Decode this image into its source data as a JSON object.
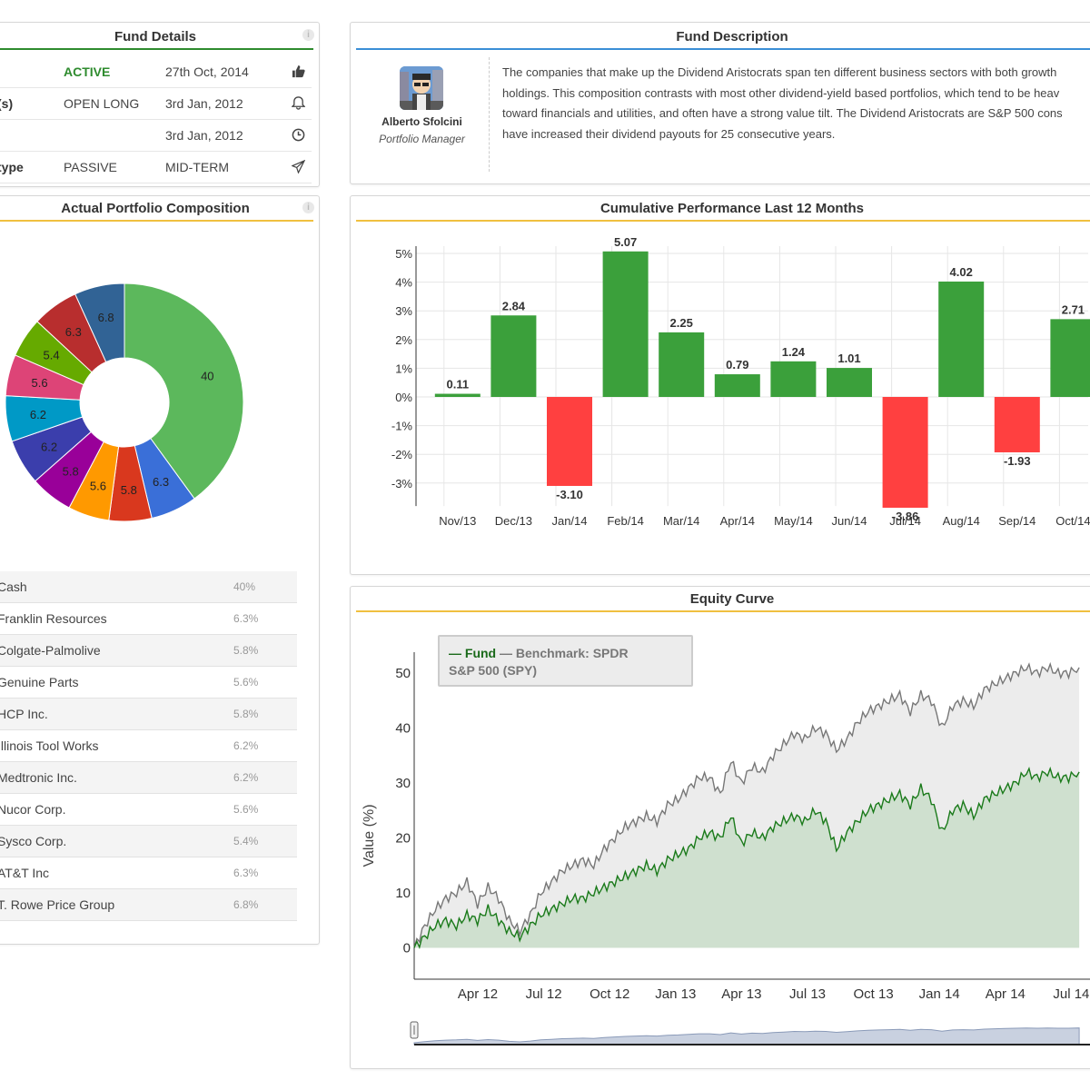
{
  "fund_details": {
    "title": "Fund Details",
    "rows": [
      {
        "label": "",
        "value": "ACTIVE",
        "date": "27th Oct, 2014",
        "icon": "thumbs-up-icon"
      },
      {
        "label": "(s)",
        "value": "OPEN LONG",
        "date": "3rd Jan, 2012",
        "icon": "bell-icon"
      },
      {
        "label": "",
        "value": "",
        "date": "3rd Jan, 2012",
        "icon": "clock-icon"
      },
      {
        "label": "type",
        "value": "PASSIVE",
        "date": "MID-TERM",
        "icon": "paper-plane-icon"
      }
    ],
    "accent": "#2e8b2e"
  },
  "fund_description": {
    "title": "Fund Description",
    "manager_name": "Alberto Sfolcini",
    "manager_role": "Portfolio Manager",
    "lines": [
      "The companies that make up the Dividend Aristocrats span ten different business sectors with both growth",
      "holdings. This composition contrasts with most other dividend-yield based portfolios, which tend to be heav",
      "toward financials and utilities, and often have a strong value tilt. The Dividend Aristocrats are S&P 500 cons",
      "have increased their dividend payouts for 25 consecutive years."
    ]
  },
  "composition": {
    "title": "Actual Portfolio Composition",
    "legend": [
      {
        "name": "Cash",
        "pct": "40%"
      },
      {
        "name": "Franklin Resources",
        "pct": "6.3%"
      },
      {
        "name": "Colgate-Palmolive",
        "pct": "5.8%"
      },
      {
        "name": "Genuine Parts",
        "pct": "5.6%"
      },
      {
        "name": "HCP Inc.",
        "pct": "5.8%"
      },
      {
        "name": "Illinois Tool Works",
        "pct": "6.2%"
      },
      {
        "name": "Medtronic Inc.",
        "pct": "6.2%"
      },
      {
        "name": "Nucor Corp.",
        "pct": "5.6%"
      },
      {
        "name": "Sysco Corp.",
        "pct": "5.4%"
      },
      {
        "name": "AT&T Inc",
        "pct": "6.3%"
      },
      {
        "name": "T. Rowe Price Group",
        "pct": "6.8%"
      }
    ]
  },
  "performance": {
    "title": "Cumulative Performance Last 12 Months"
  },
  "equity": {
    "title": "Equity Curve",
    "legend_fund": "— Fund",
    "legend_bench": "— Benchmark: SPDR",
    "legend_bench2": "S&P 500 (SPY)"
  },
  "chart_data": [
    {
      "type": "pie",
      "style": "donut",
      "labels": [
        "Cash",
        "Franklin Resources",
        "Colgate-Palmolive",
        "Genuine Parts",
        "HCP Inc.",
        "Illinois Tool Works",
        "Medtronic Inc.",
        "Nucor Corp.",
        "Sysco Corp.",
        "AT&T Inc",
        "T. Rowe Price Group"
      ],
      "values": [
        40,
        6.3,
        5.8,
        5.6,
        5.8,
        6.2,
        6.2,
        5.6,
        5.4,
        6.3,
        6.8
      ],
      "colors": [
        "#5cb85c",
        "#3a6fd8",
        "#d9381e",
        "#ff9900",
        "#990099",
        "#3b3eac",
        "#0099c6",
        "#dd4477",
        "#66aa00",
        "#b82e2e",
        "#316395"
      ]
    },
    {
      "type": "bar",
      "title": "Cumulative Performance Last 12 Months",
      "categories": [
        "Nov/13",
        "Dec/13",
        "Jan/14",
        "Feb/14",
        "Mar/14",
        "Apr/14",
        "May/14",
        "Jun/14",
        "Jul/14",
        "Aug/14",
        "Sep/14",
        "Oct/14"
      ],
      "values": [
        0.11,
        2.84,
        -3.1,
        5.07,
        2.25,
        0.79,
        1.24,
        1.01,
        -3.86,
        4.02,
        -1.93,
        2.71
      ],
      "labels": [
        "0.11",
        "2.84",
        "-3.10",
        "5.07",
        "2.25",
        "0.79",
        "1.24",
        "1.01",
        "-3.86",
        "4.02",
        "-1.93",
        "2.71"
      ],
      "yticks": [
        "5%",
        "4%",
        "3%",
        "2%",
        "1%",
        "0%",
        "-1%",
        "-2%",
        "-3%"
      ],
      "ylim": [
        -3.8,
        5
      ],
      "positive_color": "#3ba03b",
      "negative_color": "#ff4040",
      "grid": true
    },
    {
      "type": "area",
      "title": "Equity Curve",
      "ylabel": "Value (%)",
      "yticks": [
        "0",
        "10",
        "20",
        "30",
        "40",
        "50"
      ],
      "ylim": [
        -2,
        58
      ],
      "xticks": [
        "Apr 12",
        "Jul 12",
        "Oct 12",
        "Jan 13",
        "Apr 13",
        "Jul 13",
        "Oct 13",
        "Jan 14",
        "Apr 14",
        "Jul 14"
      ],
      "series": [
        {
          "name": "Fund",
          "color": "#1a7a1a",
          "fill": "#cfe0cf",
          "x": [
            0,
            0.5,
            1,
            1.5,
            2,
            2.5,
            3,
            3.5,
            4,
            4.5,
            5,
            5.5,
            6,
            6.5,
            7,
            7.5,
            8,
            8.5,
            9,
            9.5,
            10,
            10.5,
            11,
            11.5,
            12,
            12.5,
            13,
            13.5,
            14,
            14.5,
            15,
            15.5,
            16,
            16.5,
            17,
            17.5,
            18,
            18.5,
            19,
            19.5,
            20,
            20.5,
            21,
            21.5,
            22,
            22.5,
            23,
            23.5,
            24,
            24.5,
            25,
            25.5,
            26,
            26.5,
            27,
            27.5,
            28,
            28.5,
            29,
            29.5,
            30,
            30.5,
            31,
            31.5
          ],
          "y": [
            0,
            2,
            4,
            5,
            4,
            6,
            5,
            7,
            5,
            3,
            2,
            4,
            6,
            7,
            8,
            9,
            9,
            10,
            11,
            12,
            13,
            14,
            15,
            14,
            16,
            17,
            18,
            20,
            21,
            20,
            24,
            19,
            21,
            20,
            22,
            23,
            24,
            23,
            25,
            23,
            18,
            21,
            23,
            25,
            26,
            27,
            28,
            26,
            29,
            27,
            21,
            25,
            26,
            24,
            27,
            28,
            29,
            30,
            32,
            31,
            32,
            31,
            31,
            32
          ]
        },
        {
          "name": "Benchmark: SPDR S&P 500 (SPY)",
          "color": "#777777",
          "fill": "#ececec",
          "x": [
            0,
            0.5,
            1,
            1.5,
            2,
            2.5,
            3,
            3.5,
            4,
            4.5,
            5,
            5.5,
            6,
            6.5,
            7,
            7.5,
            8,
            8.5,
            9,
            9.5,
            10,
            10.5,
            11,
            11.5,
            12,
            12.5,
            13,
            13.5,
            14,
            14.5,
            15,
            15.5,
            16,
            16.5,
            17,
            17.5,
            18,
            18.5,
            19,
            19.5,
            20,
            20.5,
            21,
            21.5,
            22,
            22.5,
            23,
            23.5,
            24,
            24.5,
            25,
            25.5,
            26,
            26.5,
            27,
            27.5,
            28,
            28.5,
            29,
            29.5,
            30,
            30.5,
            31,
            31.5
          ],
          "y": [
            0,
            4,
            7,
            9,
            10,
            12,
            8,
            11,
            9,
            5,
            3,
            6,
            10,
            12,
            14,
            15,
            16,
            15,
            18,
            20,
            22,
            23,
            24,
            23,
            26,
            27,
            29,
            31,
            31,
            28,
            34,
            30,
            33,
            32,
            35,
            37,
            39,
            38,
            40,
            39,
            36,
            38,
            41,
            43,
            44,
            45,
            46,
            43,
            46,
            45,
            40,
            44,
            45,
            44,
            47,
            48,
            49,
            50,
            51,
            50,
            51,
            50,
            50,
            51
          ]
        }
      ]
    }
  ]
}
